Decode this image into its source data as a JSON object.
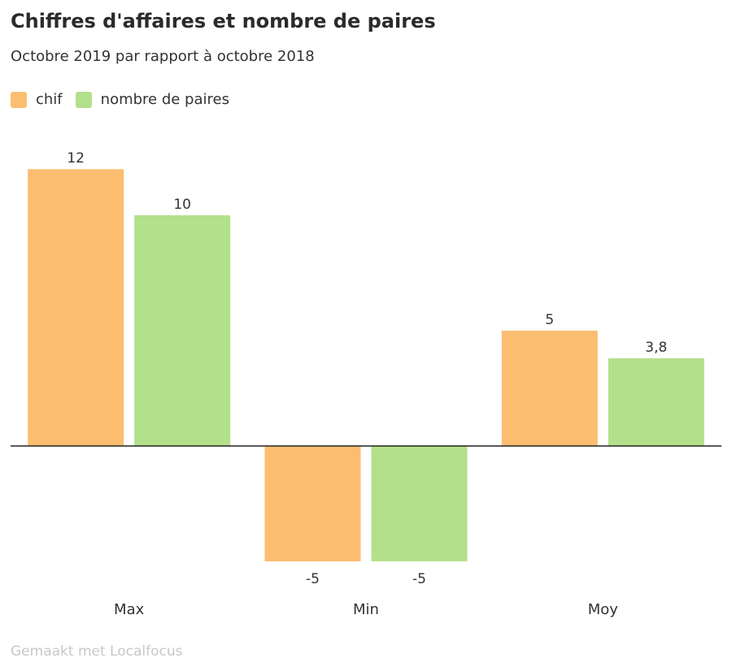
{
  "title": "Chiffres d'affaires et nombre de paires",
  "subtitle": "Octobre 2019 par rapport à octobre 2018",
  "footer": "Gemaakt met Localfocus",
  "legend": [
    {
      "label": "chif",
      "color": "#fbbe70"
    },
    {
      "label": "nombre de paires",
      "color": "#b3e08a"
    }
  ],
  "chart_data": {
    "type": "bar",
    "categories": [
      "Max",
      "Min",
      "Moy"
    ],
    "series": [
      {
        "name": "chif",
        "color": "#fbbe70",
        "values": [
          12,
          -5,
          5
        ],
        "labels": [
          "12",
          "-5",
          "5"
        ]
      },
      {
        "name": "nombre de paires",
        "color": "#b3e08a",
        "values": [
          10,
          -5,
          3.8
        ],
        "labels": [
          "10",
          "-5",
          "3,8"
        ]
      }
    ],
    "title": "Chiffres d'affaires et nombre de paires",
    "subtitle": "Octobre 2019 par rapport à octobre 2018",
    "xlabel": "",
    "ylabel": "",
    "ylim": [
      -5,
      12
    ],
    "grid": false,
    "legend_position": "top-left"
  }
}
